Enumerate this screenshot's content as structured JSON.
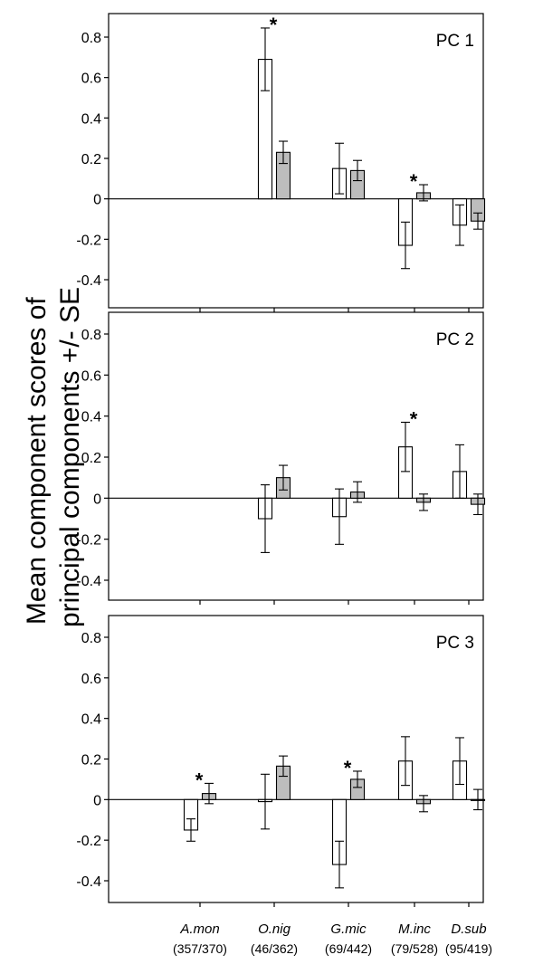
{
  "figure": {
    "ylabel_line1": "Mean component scores of",
    "ylabel_line2": "principal components +/- SE"
  },
  "chart_data": {
    "type": "bar",
    "categories": [
      {
        "name": "A.mon",
        "n": "(357/370)"
      },
      {
        "name": "O.nig",
        "n": "(46/362)"
      },
      {
        "name": "G.mic",
        "n": "(69/442)"
      },
      {
        "name": "M.inc",
        "n": "(79/528)"
      },
      {
        "name": "D.sub",
        "n": "(95/419)"
      }
    ],
    "series_colors": {
      "open": "#ffffff",
      "filled": "#bdbdbd",
      "stroke": "#000000"
    },
    "ylim": [
      -0.5,
      0.9
    ],
    "yticks": [
      "0.8",
      "0.6",
      "0.4",
      "0.2",
      "0",
      "-0.2",
      "-0.4"
    ],
    "panels": [
      {
        "label": "PC 1",
        "open": [
          null,
          0.69,
          0.15,
          -0.23,
          -0.13
        ],
        "open_se": [
          null,
          0.155,
          0.125,
          0.115,
          0.1
        ],
        "filled": [
          null,
          0.23,
          0.14,
          0.03,
          -0.11
        ],
        "filled_se": [
          null,
          0.055,
          0.05,
          0.04,
          0.04
        ],
        "significant": [
          false,
          true,
          false,
          true,
          false
        ],
        "star": "*"
      },
      {
        "label": "PC 2",
        "open": [
          null,
          -0.1,
          -0.09,
          0.25,
          0.13
        ],
        "open_se": [
          null,
          0.165,
          0.135,
          0.12,
          0.13
        ],
        "filled": [
          null,
          0.1,
          0.03,
          -0.02,
          -0.03
        ],
        "filled_se": [
          null,
          0.06,
          0.05,
          0.04,
          0.05
        ],
        "significant": [
          false,
          false,
          false,
          true,
          false
        ],
        "star": "*"
      },
      {
        "label": "PC 3",
        "open": [
          -0.15,
          -0.01,
          -0.32,
          0.19,
          0.19
        ],
        "open_se": [
          0.055,
          0.135,
          0.115,
          0.12,
          0.115
        ],
        "filled": [
          0.03,
          0.165,
          0.1,
          -0.02,
          0.0
        ],
        "filled_se": [
          0.05,
          0.05,
          0.04,
          0.04,
          0.05
        ],
        "significant": [
          true,
          false,
          true,
          false,
          false
        ],
        "star": "*"
      }
    ]
  }
}
